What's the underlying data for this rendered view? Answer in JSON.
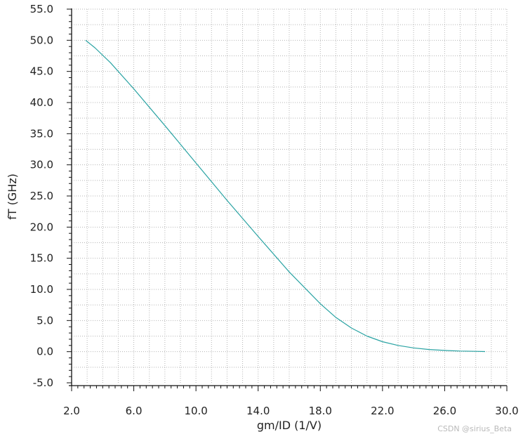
{
  "chart_data": {
    "type": "line",
    "title": "",
    "xlabel": "gm/ID (1/V)",
    "ylabel": "fT (GHz)",
    "xlim": [
      2.0,
      30.0
    ],
    "ylim": [
      -5.0,
      55.0
    ],
    "x_ticks": [
      "2.0",
      "6.0",
      "10.0",
      "14.0",
      "18.0",
      "22.0",
      "26.0",
      "30.0"
    ],
    "y_ticks": [
      "-5.0",
      "0.0",
      "5.0",
      "10.0",
      "15.0",
      "20.0",
      "25.0",
      "30.0",
      "35.0",
      "40.0",
      "45.0",
      "50.0",
      "55.0"
    ],
    "grid": true,
    "series": [
      {
        "color": "#2aa3a3",
        "x": [
          2.9,
          3.5,
          4.5,
          6.0,
          8.0,
          10.0,
          12.0,
          14.0,
          16.0,
          18.0,
          19.0,
          20.0,
          21.0,
          22.0,
          23.0,
          24.0,
          25.0,
          26.0,
          27.0,
          28.0,
          28.6
        ],
        "y": [
          50.0,
          48.8,
          46.4,
          42.2,
          36.3,
          30.3,
          24.3,
          18.5,
          12.8,
          7.7,
          5.5,
          3.8,
          2.5,
          1.6,
          1.0,
          0.6,
          0.35,
          0.2,
          0.1,
          0.05,
          0.02
        ]
      }
    ]
  },
  "watermark": "CSDN @sirius_Beta"
}
